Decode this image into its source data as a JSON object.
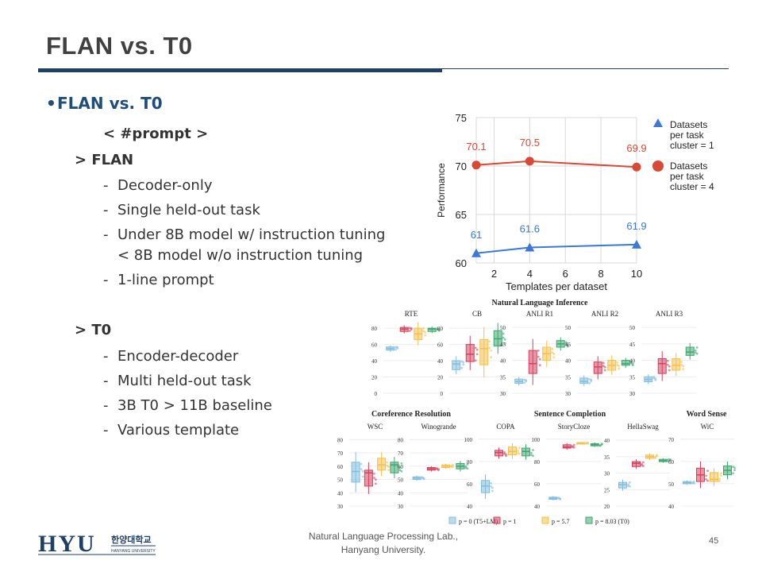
{
  "slide": {
    "title": "FLAN vs. T0",
    "bullet": "FLAN vs. T0",
    "bullet_symbol": "•",
    "prompt_label": "< #prompt >",
    "flan_header": "> FLAN",
    "flan_items": [
      "Decoder-only",
      "Single held-out task",
      "Under 8B model w/ instruction tuning",
      "< 8B model w/o instruction tuning",
      "1-line prompt"
    ],
    "t0_header": "> T0",
    "t0_items": [
      "Encoder-decoder",
      "Multi held-out task",
      "3B T0 > 11B baseline",
      "Various template"
    ],
    "dash": "-"
  },
  "footer": {
    "lab": "Natural Language Processing  Lab.,",
    "university": "Hanyang University.",
    "page": "45",
    "logo_text": "HYU",
    "logo_korean": "한양대학교",
    "logo_sub": "HANYANG UNIVERSITY"
  },
  "colors": {
    "title": "#404040",
    "accent": "#1f4e79",
    "rule": "#1f3f66",
    "red": "#d94735",
    "blue": "#3b78d8",
    "p0": "#7fbde0",
    "p1": "#d6405c",
    "p57": "#f5c04a",
    "p803": "#3da86e"
  },
  "chart_data": [
    {
      "type": "line",
      "xlabel": "Templates per dataset",
      "ylabel": "Performance",
      "xticks": [
        2,
        4,
        6,
        8,
        10
      ],
      "yticks": [
        60,
        65,
        70,
        75
      ],
      "xlim": [
        1,
        10
      ],
      "ylim": [
        60,
        75
      ],
      "series": [
        {
          "name": "Datasets per task cluster = 4",
          "legend_lines": [
            "Datasets",
            "per task",
            "cluster = 4"
          ],
          "marker": "circle",
          "x": [
            1,
            4,
            10
          ],
          "values": [
            70.1,
            70.5,
            69.9
          ],
          "labels": [
            "70.1",
            "70.5",
            "69.9"
          ]
        },
        {
          "name": "Datasets per task cluster = 1",
          "legend_lines": [
            "Datasets",
            "per task",
            "cluster = 1"
          ],
          "marker": "triangle",
          "x": [
            1,
            4,
            10
          ],
          "values": [
            61,
            61.6,
            61.9
          ],
          "labels": [
            "61",
            "61.6",
            "61.9"
          ]
        }
      ]
    },
    {
      "type": "box",
      "panels": [
        {
          "group": "Natural Language Inference",
          "name": "RTE",
          "yticks": [
            0,
            20,
            40,
            60,
            80
          ],
          "ylim": [
            0,
            85
          ],
          "boxes": [
            [
              53,
              55,
              57
            ],
            [
              76,
              79,
              81
            ],
            [
              66,
              73,
              80
            ],
            [
              76,
              79,
              80
            ]
          ]
        },
        {
          "group": "",
          "name": "CB",
          "yticks": [
            0,
            20,
            40,
            60,
            80
          ],
          "ylim": [
            0,
            85
          ],
          "boxes": [
            [
              29,
              36,
              40
            ],
            [
              39,
              48,
              60
            ],
            [
              35,
              55,
              66
            ],
            [
              58,
              67,
              77
            ]
          ]
        },
        {
          "group": "",
          "name": "ANLI R1",
          "yticks": [
            30,
            35,
            40,
            45,
            50
          ],
          "ylim": [
            30,
            51
          ],
          "boxes": [
            [
              33,
              33.6,
              34.3
            ],
            [
              36,
              39,
              43
            ],
            [
              40,
              42,
              44
            ],
            [
              44,
              45,
              46
            ]
          ]
        },
        {
          "group": "",
          "name": "ANLI R2",
          "yticks": [
            30,
            35,
            40,
            45,
            50
          ],
          "ylim": [
            30,
            51
          ],
          "boxes": [
            [
              33,
              33.6,
              34.6
            ],
            [
              36,
              38,
              39.5
            ],
            [
              37,
              38.5,
              40
            ],
            [
              38.5,
              39,
              40
            ]
          ]
        },
        {
          "group": "",
          "name": "ANLI R3",
          "yticks": [
            30,
            35,
            40,
            45,
            50
          ],
          "ylim": [
            30,
            51
          ],
          "boxes": [
            [
              33.5,
              34.2,
              35
            ],
            [
              36,
              39,
              40.5
            ],
            [
              37,
              38.5,
              40.5
            ],
            [
              41.5,
              42.5,
              44
            ]
          ]
        },
        {
          "group": "Coreference Resolution",
          "name": "WSC",
          "yticks": [
            30,
            40,
            50,
            60,
            70,
            80
          ],
          "ylim": [
            30,
            82
          ],
          "boxes": [
            [
              48,
              56,
              63
            ],
            [
              45,
              55,
              57
            ],
            [
              57,
              61,
              66
            ],
            [
              55,
              61,
              63
            ]
          ]
        },
        {
          "group": "",
          "name": "Winogrande",
          "yticks": [
            30,
            40,
            50,
            60,
            70,
            80
          ],
          "ylim": [
            30,
            82
          ],
          "boxes": [
            [
              50,
              51,
              52
            ],
            [
              57,
              58,
              59
            ],
            [
              59,
              60,
              61
            ],
            [
              58,
              60,
              62
            ]
          ]
        },
        {
          "group": "Sentence Completion",
          "name": "COPA",
          "yticks": [
            40,
            60,
            80,
            100
          ],
          "ylim": [
            40,
            102
          ],
          "boxes": [
            [
              52,
              58,
              63
            ],
            [
              85,
              88,
              90
            ],
            [
              86,
              89,
              93
            ],
            [
              85,
              89,
              92
            ]
          ]
        },
        {
          "group": "",
          "name": "StoryCloze",
          "yticks": [
            40,
            60,
            80,
            100
          ],
          "ylim": [
            40,
            102
          ],
          "boxes": [
            [
              46,
              47,
              48
            ],
            [
              92,
              93,
              95
            ],
            [
              96,
              96.5,
              97
            ],
            [
              94,
              95,
              96
            ]
          ]
        },
        {
          "group": "",
          "name": "HellaSwag",
          "yticks": [
            20,
            25,
            30,
            35,
            40
          ],
          "ylim": [
            20,
            41
          ],
          "boxes": [
            [
              25.5,
              26.5,
              27.2
            ],
            [
              32,
              33,
              33.5
            ],
            [
              34.5,
              35,
              35.5
            ],
            [
              33.5,
              33.8,
              34.2
            ]
          ]
        },
        {
          "group": "Word Sense",
          "name": "WiC",
          "yticks": [
            40,
            50,
            60,
            70
          ],
          "ylim": [
            40,
            71
          ],
          "boxes": [
            [
              50,
              50.5,
              51
            ],
            [
              51,
              54,
              57
            ],
            [
              51,
              52,
              55
            ],
            [
              54,
              56,
              58
            ]
          ]
        }
      ],
      "legend": [
        "p = 0 (T5+LM)",
        "p = 1",
        "p = 5.7",
        "p = 8.03 (T0)"
      ]
    }
  ]
}
